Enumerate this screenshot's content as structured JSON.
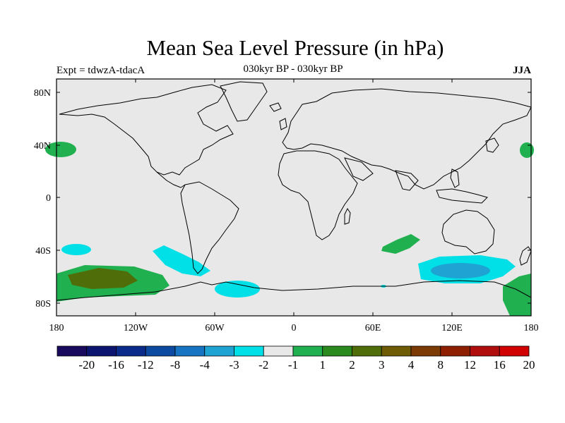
{
  "map": {
    "title": "Mean Sea Level Pressure (in hPa)",
    "subtitle": "030kyr BP - 030kyr BP",
    "left_label": "Expt = tdwzA-tdacA",
    "right_label": "JJA",
    "background_color": "#e8e8e8",
    "lat_ticks": [
      "80N",
      "40N",
      "0",
      "40S",
      "80S"
    ],
    "lon_ticks": [
      "180",
      "120W",
      "60W",
      "0",
      "60E",
      "120E",
      "180"
    ]
  },
  "colorbar": {
    "colors": [
      "#1a0a5e",
      "#0c1670",
      "#0a2b8a",
      "#0b4aa0",
      "#1774c2",
      "#1fa3d2",
      "#00e0e6",
      "#e8e8e8",
      "#20b050",
      "#2a8a1e",
      "#4f6e0a",
      "#6f5a05",
      "#7c3a04",
      "#8e2001",
      "#b00d0d",
      "#d00202"
    ],
    "labels": [
      "-20",
      "-16",
      "-12",
      "-8",
      "-4",
      "-3",
      "-2",
      "-1",
      "1",
      "2",
      "3",
      "4",
      "8",
      "12",
      "16",
      "20"
    ]
  }
}
